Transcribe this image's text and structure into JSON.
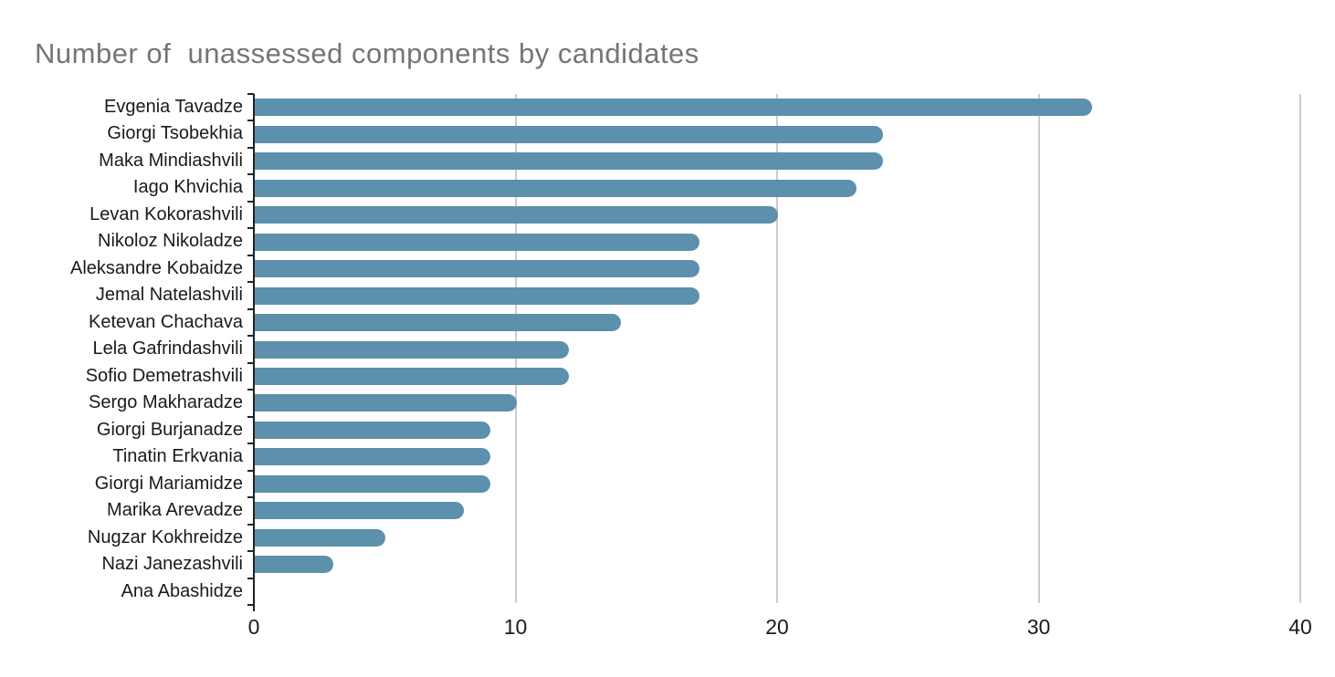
{
  "chart_data": {
    "type": "bar",
    "orientation": "horizontal",
    "title": "Number of  unassessed components by candidates",
    "categories": [
      "Evgenia Tavadze",
      "Giorgi Tsobekhia",
      "Maka Mindiashvili",
      "Iago Khvichia",
      "Levan Kokorashvili",
      "Nikoloz Nikoladze",
      "Aleksandre Kobaidze",
      "Jemal Natelashvili",
      "Ketevan Chachava",
      "Lela Gafrindashvili",
      "Sofio Demetrashvili",
      "Sergo Makharadze",
      "Giorgi Burjanadze",
      "Tinatin Erkvania",
      "Giorgi Mariamidze",
      "Marika Arevadze",
      "Nugzar Kokhreidze",
      "Nazi Janezashvili",
      "Ana Abashidze"
    ],
    "values": [
      32,
      24,
      24,
      23,
      20,
      17,
      17,
      17,
      14,
      12,
      12,
      10,
      9,
      9,
      9,
      8,
      5,
      3,
      0
    ],
    "xlabel": "",
    "ylabel": "",
    "xlim": [
      0,
      40
    ],
    "x_ticks": [
      0,
      10,
      20,
      30,
      40
    ],
    "grid": "vertical-only",
    "legend": "none"
  },
  "colors": {
    "bar": "#5c90ad",
    "title": "#757575",
    "label_text": "#1a1a1a",
    "gridline": "#cccccc",
    "axis": "#222222",
    "background": "#ffffff"
  }
}
